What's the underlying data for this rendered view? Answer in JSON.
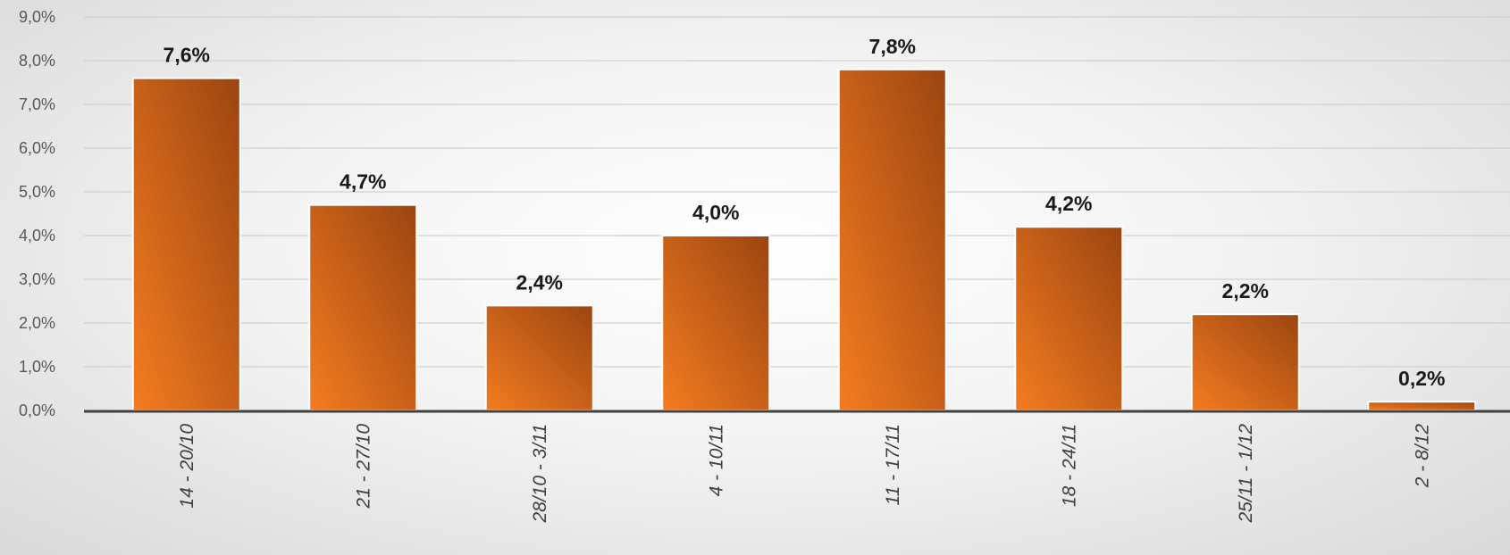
{
  "chart_data": {
    "type": "bar",
    "title": "",
    "xlabel": "",
    "ylabel": "",
    "categories": [
      "14 - 20/10",
      "21 - 27/10",
      "28/10 - 3/11",
      "4 - 10/11",
      "11 - 17/11",
      "18 - 24/11",
      "25/11 - 1/12",
      "2 - 8/12"
    ],
    "values": [
      7.6,
      4.7,
      2.4,
      4.0,
      7.8,
      4.2,
      2.2,
      0.2
    ],
    "data_labels": [
      "7,6%",
      "4,7%",
      "2,4%",
      "4,0%",
      "7,8%",
      "4,2%",
      "2,2%",
      "0,2%"
    ],
    "ylim": [
      0,
      9
    ],
    "yticks": [
      0,
      1,
      2,
      3,
      4,
      5,
      6,
      7,
      8,
      9
    ],
    "ytick_labels": [
      "0,0%",
      "1,0%",
      "2,0%",
      "3,0%",
      "4,0%",
      "5,0%",
      "6,0%",
      "7,0%",
      "8,0%",
      "9,0%"
    ],
    "grid": true,
    "legend": "none",
    "colors": {
      "bar_light": "#f47c20",
      "bar_dark": "#9b4511",
      "grid": "#d0d0d0",
      "axis": "#404040"
    }
  }
}
